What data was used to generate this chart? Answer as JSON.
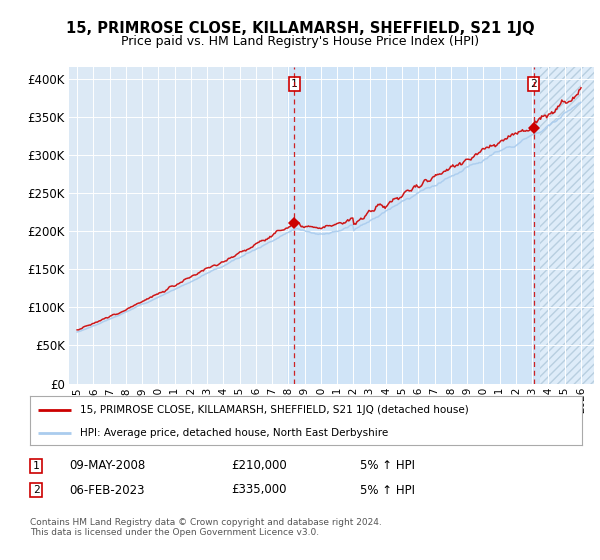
{
  "title": "15, PRIMROSE CLOSE, KILLAMARSH, SHEFFIELD, S21 1JQ",
  "subtitle": "Price paid vs. HM Land Registry's House Price Index (HPI)",
  "ylabel_ticks": [
    "£0",
    "£50K",
    "£100K",
    "£150K",
    "£200K",
    "£250K",
    "£300K",
    "£350K",
    "£400K"
  ],
  "ytick_values": [
    0,
    50000,
    100000,
    150000,
    200000,
    250000,
    300000,
    350000,
    400000
  ],
  "ylim": [
    0,
    415000
  ],
  "xlim_start": 1994.5,
  "xlim_end": 2026.8,
  "xticks": [
    1995,
    1996,
    1997,
    1998,
    1999,
    2000,
    2001,
    2002,
    2003,
    2004,
    2005,
    2006,
    2007,
    2008,
    2009,
    2010,
    2011,
    2012,
    2013,
    2014,
    2015,
    2016,
    2017,
    2018,
    2019,
    2020,
    2021,
    2022,
    2023,
    2024,
    2025,
    2026
  ],
  "hpi_color": "#aaccee",
  "price_color": "#cc0000",
  "marker_color": "#cc0000",
  "sale1_x": 2008.36,
  "sale1_y": 210000,
  "sale2_x": 2023.09,
  "sale2_y": 335000,
  "legend_line1": "15, PRIMROSE CLOSE, KILLAMARSH, SHEFFIELD, S21 1JQ (detached house)",
  "legend_line2": "HPI: Average price, detached house, North East Derbyshire",
  "note1_label": "1",
  "note1_date": "09-MAY-2008",
  "note1_price": "£210,000",
  "note1_hpi": "5% ↑ HPI",
  "note2_label": "2",
  "note2_date": "06-FEB-2023",
  "note2_price": "£335,000",
  "note2_hpi": "5% ↑ HPI",
  "footer": "Contains HM Land Registry data © Crown copyright and database right 2024.\nThis data is licensed under the Open Government Licence v3.0.",
  "bg_color": "#dce9f5",
  "highlight_bg": "#d0e4f7",
  "hatch_color": "#b8cfe0"
}
